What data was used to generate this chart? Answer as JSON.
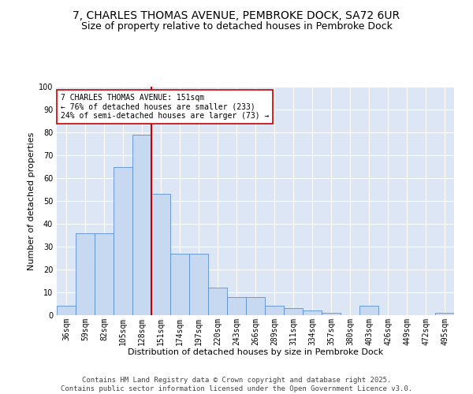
{
  "title_line1": "7, CHARLES THOMAS AVENUE, PEMBROKE DOCK, SA72 6UR",
  "title_line2": "Size of property relative to detached houses in Pembroke Dock",
  "xlabel": "Distribution of detached houses by size in Pembroke Dock",
  "ylabel": "Number of detached properties",
  "categories": [
    "36sqm",
    "59sqm",
    "82sqm",
    "105sqm",
    "128sqm",
    "151sqm",
    "174sqm",
    "197sqm",
    "220sqm",
    "243sqm",
    "266sqm",
    "289sqm",
    "311sqm",
    "334sqm",
    "357sqm",
    "380sqm",
    "403sqm",
    "426sqm",
    "449sqm",
    "472sqm",
    "495sqm"
  ],
  "values": [
    4,
    36,
    36,
    65,
    79,
    53,
    27,
    27,
    12,
    8,
    8,
    4,
    3,
    2,
    1,
    0,
    4,
    0,
    0,
    0,
    1
  ],
  "bar_color": "#c6d9f1",
  "bar_edge_color": "#5b8fd4",
  "vline_color": "#cc0000",
  "annotation_text": "7 CHARLES THOMAS AVENUE: 151sqm\n← 76% of detached houses are smaller (233)\n24% of semi-detached houses are larger (73) →",
  "annotation_box_color": "#ffffff",
  "annotation_box_edge": "#cc0000",
  "background_color": "#dce6f5",
  "fig_background_color": "#ffffff",
  "ylim": [
    0,
    100
  ],
  "yticks": [
    0,
    10,
    20,
    30,
    40,
    50,
    60,
    70,
    80,
    90,
    100
  ],
  "footer_text": "Contains HM Land Registry data © Crown copyright and database right 2025.\nContains public sector information licensed under the Open Government Licence v3.0.",
  "title_fontsize": 10,
  "subtitle_fontsize": 9,
  "axis_label_fontsize": 8,
  "tick_fontsize": 7,
  "annotation_fontsize": 7,
  "footer_fontsize": 6.5,
  "ylabel_fontsize": 8
}
